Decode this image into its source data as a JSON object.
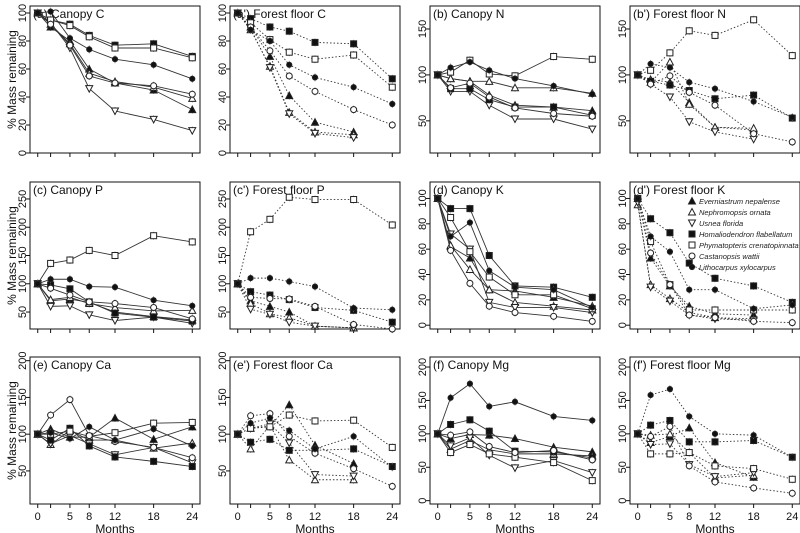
{
  "chart_data": {
    "type": "line",
    "x": [
      0,
      2,
      5,
      8,
      12,
      18,
      24
    ],
    "xticks": [
      0,
      5,
      8,
      12,
      18,
      24
    ],
    "xlabel": "Months",
    "ylabel": "% Mass remaining",
    "legend": {
      "placement": "top-right of panel (d')",
      "entries": [
        {
          "name": "Everniastrum nepalense",
          "marker": "triangle-up-filled"
        },
        {
          "name": "Nephromopsis ornata",
          "marker": "triangle-up-open"
        },
        {
          "name": "Usnea florida",
          "marker": "triangle-down-open"
        },
        {
          "name": "Homaliodendron flabellatum",
          "marker": "square-filled"
        },
        {
          "name": "Phymatopteris crenatopinnata",
          "marker": "square-open"
        },
        {
          "name": "Castanopsis wattii",
          "marker": "circle-open"
        },
        {
          "name": "Lithocarpus xylocarpus",
          "marker": "circle-filled"
        }
      ]
    },
    "panels": [
      {
        "id": "a",
        "title": "(a) Canopy C",
        "line": "solid",
        "ylim": [
          0,
          105
        ],
        "yticks": [
          0,
          20,
          40,
          60,
          80,
          100
        ],
        "series": {
          "Everniastrum nepalense": [
            100,
            90,
            80,
            60,
            50,
            45,
            31
          ],
          "Nephromopsis ornata": [
            100,
            92,
            78,
            57,
            51,
            47,
            39
          ],
          "Usnea florida": [
            100,
            93,
            75,
            46,
            30,
            24,
            16
          ],
          "Homaliodendron flabellatum": [
            100,
            95,
            92,
            84,
            77,
            78,
            69
          ],
          "Phymatopteris crenatopinnata": [
            100,
            95,
            91,
            83,
            75,
            75,
            68
          ],
          "Castanopsis wattii": [
            100,
            92,
            77,
            55,
            50,
            48,
            42
          ],
          "Lithocarpus xylocarpus": [
            100,
            101,
            82,
            74,
            67,
            63,
            53
          ]
        }
      },
      {
        "id": "a'",
        "title": "(a') Forest floor C",
        "line": "dotted",
        "ylim": [
          0,
          105
        ],
        "yticks": [
          0,
          20,
          40,
          60,
          80,
          100
        ],
        "series": {
          "Everniastrum nepalense": [
            100,
            90,
            69,
            41,
            22,
            15,
            null
          ],
          "Nephromopsis ornata": [
            100,
            88,
            62,
            29,
            15,
            13,
            null
          ],
          "Usnea florida": [
            100,
            89,
            61,
            28,
            14,
            11,
            null
          ],
          "Homaliodendron flabellatum": [
            100,
            96,
            90,
            87,
            79,
            78,
            53
          ],
          "Phymatopteris crenatopinnata": [
            100,
            93,
            81,
            72,
            67,
            70,
            47
          ],
          "Castanopsis wattii": [
            100,
            90,
            73,
            55,
            44,
            31,
            20
          ],
          "Lithocarpus xylocarpus": [
            100,
            88,
            80,
            63,
            54,
            47,
            35
          ]
        }
      },
      {
        "id": "b",
        "title": "(b) Canopy N",
        "line": "solid",
        "ylim": [
          15,
          175
        ],
        "yticks": [
          50,
          100,
          150
        ],
        "series": {
          "Everniastrum nepalense": [
            100,
            96,
            93,
            78,
            67,
            65,
            61
          ],
          "Nephromopsis ornata": [
            100,
            96,
            93,
            93,
            86,
            86,
            80
          ],
          "Usnea florida": [
            100,
            82,
            82,
            67,
            52,
            52,
            41
          ],
          "Homaliodendron flabellatum": [
            100,
            85,
            85,
            73,
            65,
            65,
            56
          ],
          "Phymatopteris crenatopinnata": [
            100,
            103,
            116,
            101,
            99,
            120,
            117
          ],
          "Castanopsis wattii": [
            100,
            86,
            91,
            76,
            64,
            58,
            55
          ],
          "Lithocarpus xylocarpus": [
            100,
            108,
            114,
            105,
            96,
            88,
            79
          ]
        }
      },
      {
        "id": "b'",
        "title": "(b') Forest floor N",
        "line": "dotted",
        "ylim": [
          15,
          175
        ],
        "yticks": [
          50,
          100,
          150
        ],
        "series": {
          "Everniastrum nepalense": [
            100,
            95,
            92,
            70,
            43,
            40,
            null
          ],
          "Nephromopsis ornata": [
            100,
            92,
            114,
            68,
            43,
            42,
            null
          ],
          "Usnea florida": [
            100,
            90,
            76,
            49,
            38,
            30,
            null
          ],
          "Homaliodendron flabellatum": [
            100,
            93,
            89,
            83,
            74,
            78,
            53
          ],
          "Phymatopteris crenatopinnata": [
            100,
            105,
            124,
            148,
            143,
            160,
            121
          ],
          "Castanopsis wattii": [
            100,
            90,
            99,
            81,
            67,
            36,
            27
          ],
          "Lithocarpus xylocarpus": [
            100,
            112,
            108,
            92,
            85,
            71,
            54
          ]
        }
      },
      {
        "id": "c",
        "title": "(c) Canopy P",
        "line": "solid",
        "ylim": [
          20,
          280
        ],
        "yticks": [
          50,
          100,
          150,
          200,
          250
        ],
        "series": {
          "Everniastrum nepalense": [
            100,
            70,
            73,
            67,
            50,
            42,
            36
          ],
          "Nephromopsis ornata": [
            100,
            72,
            76,
            65,
            58,
            52,
            53
          ],
          "Usnea florida": [
            100,
            60,
            61,
            45,
            35,
            41,
            30
          ],
          "Homaliodendron flabellatum": [
            100,
            98,
            91,
            68,
            48,
            41,
            34
          ],
          "Phymatopteris crenatopinnata": [
            100,
            136,
            142,
            159,
            150,
            185,
            174
          ],
          "Castanopsis wattii": [
            100,
            92,
            80,
            68,
            65,
            58,
            38
          ],
          "Lithocarpus xylocarpus": [
            100,
            108,
            108,
            95,
            94,
            71,
            61
          ]
        }
      },
      {
        "id": "c'",
        "title": "(c') Forest floor P",
        "line": "dotted",
        "ylim": [
          20,
          280
        ],
        "yticks": [
          50,
          100,
          150,
          200,
          250
        ],
        "series": {
          "Everniastrum nepalense": [
            100,
            70,
            60,
            50,
            25,
            22,
            null
          ],
          "Nephromopsis ornata": [
            100,
            65,
            47,
            40,
            25,
            22,
            null
          ],
          "Usnea florida": [
            100,
            55,
            46,
            32,
            25,
            22,
            null
          ],
          "Homaliodendron flabellatum": [
            100,
            86,
            80,
            72,
            58,
            53,
            32
          ],
          "Phymatopteris crenatopinnata": [
            100,
            192,
            214,
            253,
            249,
            249,
            204
          ],
          "Castanopsis wattii": [
            100,
            76,
            74,
            73,
            60,
            28,
            20
          ],
          "Lithocarpus xylocarpus": [
            100,
            110,
            110,
            104,
            95,
            57,
            54
          ]
        }
      },
      {
        "id": "d",
        "title": "(d) Canopy K",
        "line": "solid",
        "ylim": [
          -3,
          113
        ],
        "yticks": [
          0,
          20,
          40,
          60,
          80,
          100
        ],
        "series": {
          "Everniastrum nepalense": [
            100,
            62,
            53,
            28,
            27,
            22,
            15
          ],
          "Nephromopsis ornata": [
            100,
            63,
            44,
            28,
            18,
            15,
            12
          ],
          "Usnea florida": [
            100,
            72,
            60,
            18,
            14,
            14,
            10
          ],
          "Homaliodendron flabellatum": [
            100,
            92,
            92,
            55,
            31,
            30,
            22
          ],
          "Phymatopteris crenatopinnata": [
            100,
            85,
            58,
            38,
            24,
            24,
            13
          ],
          "Castanopsis wattii": [
            100,
            59,
            33,
            15,
            10,
            7,
            3
          ],
          "Lithocarpus xylocarpus": [
            100,
            70,
            81,
            43,
            30,
            28,
            14
          ]
        }
      },
      {
        "id": "d'",
        "title": "(d') Forest floor K",
        "line": "dotted",
        "ylim": [
          -3,
          113
        ],
        "yticks": [
          0,
          20,
          40,
          60,
          80,
          100
        ],
        "series": {
          "Everniastrum nepalense": [
            100,
            53,
            31,
            15,
            9,
            8,
            null
          ],
          "Nephromopsis ornata": [
            95,
            32,
            21,
            10,
            6,
            5,
            null
          ],
          "Usnea florida": [
            97,
            30,
            19,
            8,
            5,
            4,
            null
          ],
          "Homaliodendron flabellatum": [
            100,
            84,
            73,
            49,
            37,
            31,
            18
          ],
          "Phymatopteris crenatopinnata": [
            100,
            66,
            32,
            12,
            12,
            12,
            12
          ],
          "Castanopsis wattii": [
            100,
            57,
            32,
            8,
            6,
            3,
            2
          ],
          "Lithocarpus xylocarpus": [
            100,
            70,
            58,
            28,
            28,
            13,
            16
          ]
        }
      },
      {
        "id": "e",
        "title": "(e) Canopy Ca",
        "line": "solid",
        "ylim": [
          5,
          205
        ],
        "yticks": [
          50,
          100,
          150,
          200
        ],
        "series": {
          "Everniastrum nepalense": [
            100,
            107,
            96,
            96,
            122,
            93,
            110
          ],
          "Nephromopsis ornata": [
            100,
            86,
            105,
            92,
            92,
            81,
            88
          ],
          "Usnea florida": [
            100,
            87,
            98,
            87,
            72,
            82,
            61
          ],
          "Homaliodendron flabellatum": [
            100,
            92,
            108,
            84,
            69,
            63,
            56
          ],
          "Phymatopteris crenatopinnata": [
            100,
            100,
            104,
            97,
            102,
            115,
            116
          ],
          "Castanopsis wattii": [
            100,
            126,
            147,
            98,
            90,
            82,
            68
          ],
          "Lithocarpus xylocarpus": [
            100,
            102,
            94,
            110,
            92,
            107,
            84
          ]
        }
      },
      {
        "id": "e'",
        "title": "(e') Forest floor Ca",
        "line": "dotted",
        "ylim": [
          5,
          205
        ],
        "yticks": [
          50,
          100,
          150,
          200
        ],
        "series": {
          "Everniastrum nepalense": [
            100,
            108,
            111,
            140,
            85,
            60,
            null
          ],
          "Nephromopsis ornata": [
            100,
            80,
            112,
            65,
            38,
            38,
            null
          ],
          "Usnea florida": [
            100,
            108,
            114,
            88,
            45,
            43,
            null
          ],
          "Homaliodendron flabellatum": [
            100,
            89,
            93,
            78,
            78,
            80,
            56
          ],
          "Phymatopteris crenatopinnata": [
            100,
            108,
            110,
            126,
            118,
            119,
            82
          ],
          "Castanopsis wattii": [
            100,
            125,
            128,
            97,
            74,
            53,
            29
          ],
          "Lithocarpus xylocarpus": [
            100,
            115,
            122,
            105,
            80,
            97,
            55
          ]
        }
      },
      {
        "id": "f",
        "title": "(f) Canopy Mg",
        "line": "solid",
        "ylim": [
          -5,
          215
        ],
        "yticks": [
          0,
          50,
          100,
          150,
          200
        ],
        "series": {
          "Everniastrum nepalense": [
            100,
            93,
            99,
            98,
            93,
            80,
            73
          ],
          "Nephromopsis ornata": [
            100,
            77,
            90,
            76,
            70,
            70,
            67
          ],
          "Usnea florida": [
            100,
            82,
            94,
            68,
            49,
            60,
            42
          ],
          "Homaliodendron flabellatum": [
            100,
            114,
            121,
            104,
            74,
            73,
            64
          ],
          "Phymatopteris crenatopinnata": [
            100,
            72,
            84,
            70,
            65,
            57,
            30
          ],
          "Castanopsis wattii": [
            100,
            98,
            103,
            81,
            72,
            75,
            61
          ],
          "Lithocarpus xylocarpus": [
            100,
            154,
            175,
            141,
            148,
            126,
            120
          ]
        }
      },
      {
        "id": "f'",
        "title": "(f') Forest floor Mg",
        "line": "dotted",
        "ylim": [
          -5,
          215
        ],
        "yticks": [
          0,
          50,
          100,
          150,
          200
        ],
        "series": {
          "Everniastrum nepalense": [
            100,
            87,
            96,
            109,
            57,
            35,
            null
          ],
          "Nephromopsis ornata": [
            100,
            98,
            100,
            72,
            34,
            38,
            null
          ],
          "Usnea florida": [
            100,
            84,
            85,
            54,
            36,
            42,
            null
          ],
          "Homaliodendron flabellatum": [
            100,
            113,
            120,
            88,
            88,
            90,
            65
          ],
          "Phymatopteris crenatopinnata": [
            100,
            70,
            70,
            72,
            52,
            48,
            32
          ],
          "Castanopsis wattii": [
            100,
            96,
            111,
            52,
            28,
            19,
            11
          ],
          "Lithocarpus xylocarpus": [
            100,
            158,
            167,
            126,
            100,
            98,
            65
          ]
        }
      }
    ]
  }
}
